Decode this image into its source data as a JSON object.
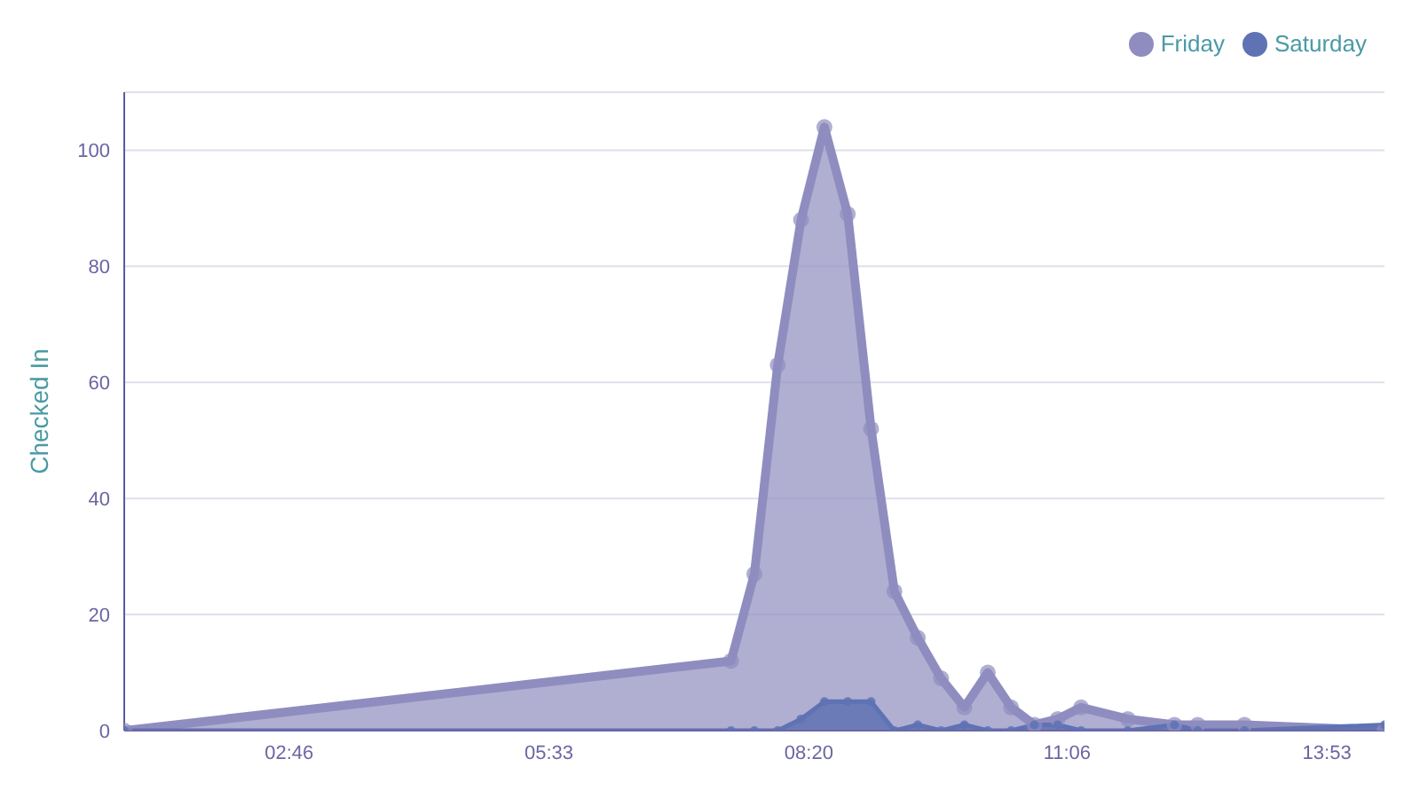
{
  "chart_data": {
    "type": "area",
    "ylabel": "Checked In",
    "x": [
      1.0,
      7.5,
      7.75,
      8.0,
      8.25,
      8.5,
      8.75,
      9.0,
      9.25,
      9.5,
      9.75,
      10.0,
      10.25,
      10.5,
      10.75,
      11.0,
      11.25,
      11.75,
      12.25,
      12.5,
      13.0,
      14.5
    ],
    "series": [
      {
        "name": "Friday",
        "color": "#8f8dbf",
        "values": [
          0,
          12,
          27,
          63,
          88,
          104,
          89,
          52,
          24,
          16,
          9,
          4,
          10,
          4,
          1,
          2,
          4,
          2,
          1,
          1,
          1,
          0
        ]
      },
      {
        "name": "Saturday",
        "color": "#5f72b4",
        "values": [
          0,
          0,
          0,
          0,
          2,
          5,
          5,
          5,
          0,
          1,
          0,
          1,
          0,
          0,
          1,
          1,
          0,
          0,
          1,
          0,
          0,
          1
        ]
      }
    ],
    "xlim": [
      1.0,
      14.5
    ],
    "xticks": [
      {
        "value": 2.7667,
        "label": "02:46"
      },
      {
        "value": 5.55,
        "label": "05:33"
      },
      {
        "value": 8.3333,
        "label": "08:20"
      },
      {
        "value": 11.1,
        "label": "11:06"
      },
      {
        "value": 13.8833,
        "label": "13:53"
      }
    ],
    "ylim": [
      0,
      110
    ],
    "yticks": [
      0,
      20,
      40,
      60,
      80,
      100
    ],
    "grid": "y",
    "legend": "top right",
    "marker": "circle",
    "line_style": "solid"
  }
}
